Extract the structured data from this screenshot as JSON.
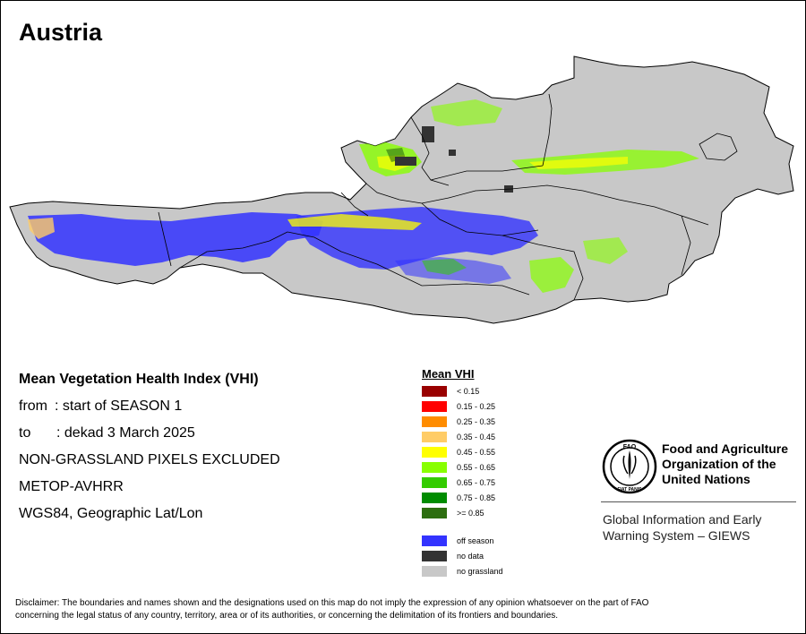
{
  "map": {
    "title": "Austria"
  },
  "info": {
    "title": "Mean Vegetation Health Index (VHI)",
    "from_label": "from",
    "from_value": ": start of SEASON 1",
    "to_label": "to",
    "to_value": ": dekad 3 March 2025",
    "line_excluded": "NON-GRASSLAND PIXELS EXCLUDED",
    "line_sensor": "METOP-AVHRR",
    "line_projection": "WGS84, Geographic Lat/Lon"
  },
  "legend": {
    "title": "Mean VHI",
    "classes": [
      {
        "label": "< 0.15",
        "color": "#990000"
      },
      {
        "label": "0.15 - 0.25",
        "color": "#ff0000"
      },
      {
        "label": "0.25 - 0.35",
        "color": "#ff8c00"
      },
      {
        "label": "0.35 - 0.45",
        "color": "#ffcc66"
      },
      {
        "label": "0.45 - 0.55",
        "color": "#ffff00"
      },
      {
        "label": "0.55 - 0.65",
        "color": "#88ff00"
      },
      {
        "label": "0.65 - 0.75",
        "color": "#33cc00"
      },
      {
        "label": "0.75 - 0.85",
        "color": "#008c00"
      },
      {
        "label": ">= 0.85",
        "color": "#2d6e10"
      }
    ],
    "other": [
      {
        "label": "off season",
        "color": "#3333ff"
      },
      {
        "label": "no data",
        "color": "#333333"
      },
      {
        "label": "no grassland",
        "color": "#c8c8c8"
      }
    ]
  },
  "fao": {
    "logo_text": "FAO",
    "motto": "FIAT PANIS",
    "name_line1": "Food and Agriculture",
    "name_line2": "Organization of the",
    "name_line3": "United Nations",
    "giews_line1": "Global Information and Early",
    "giews_line2": "Warning System – GIEWS"
  },
  "disclaimer": {
    "line1": "Disclaimer: The boundaries and names shown and the designations used on this map do not imply the expression of any opinion whatsoever on the part of FAO",
    "line2": "concerning the legal status of any country, territory, area or of its authorities, or concerning the delimitation of its frontiers and boundaries."
  }
}
